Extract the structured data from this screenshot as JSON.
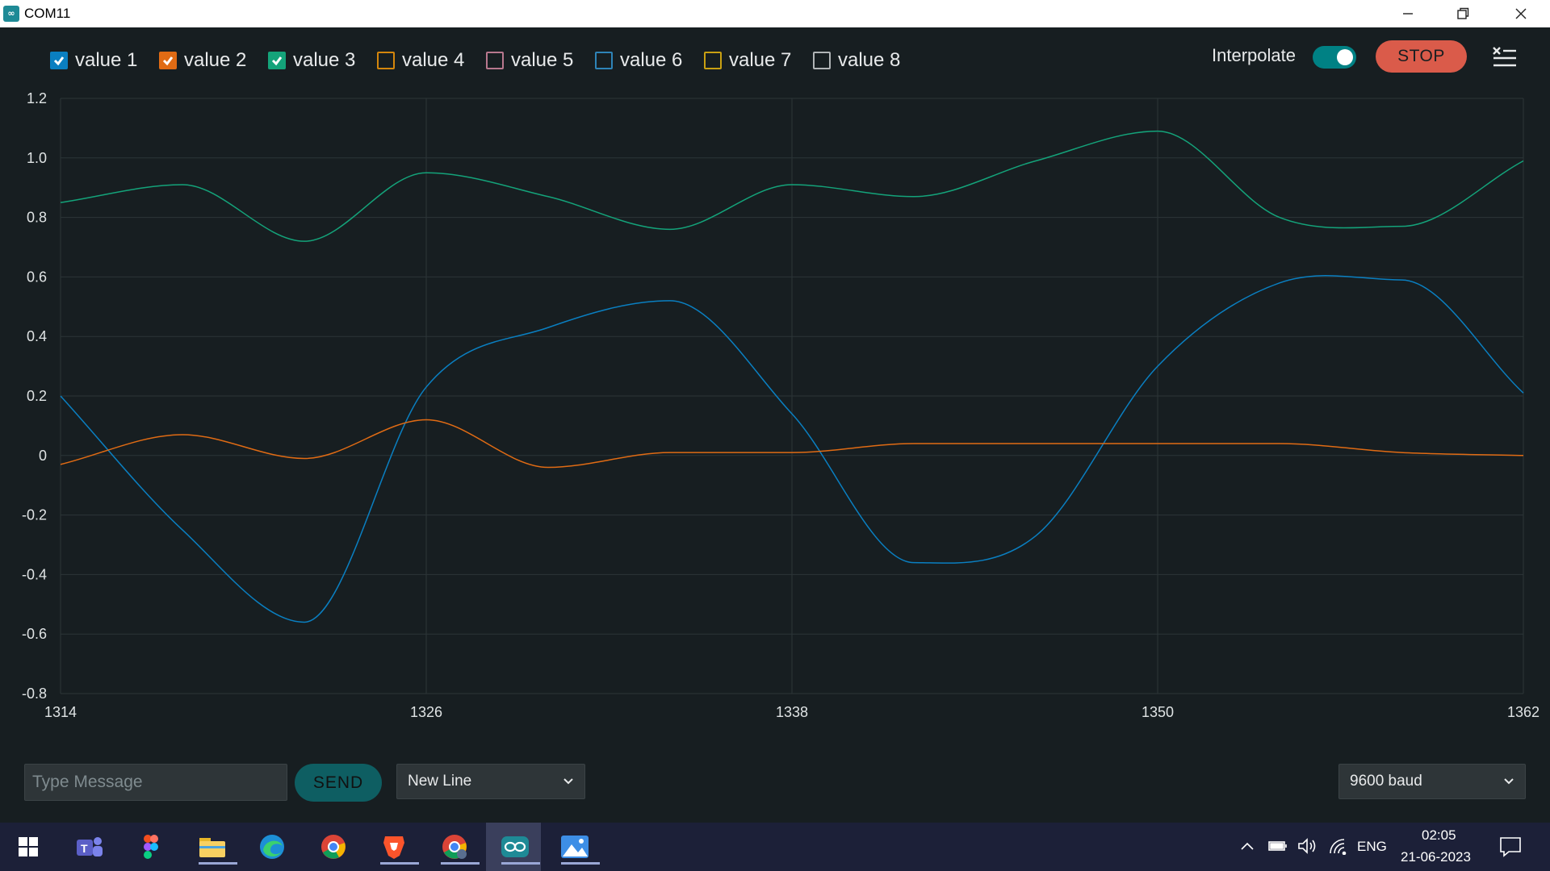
{
  "window": {
    "title": "COM11",
    "app_icon": "∞"
  },
  "legend": [
    {
      "label": "value 1",
      "color": "#0a7fc1",
      "checked": true
    },
    {
      "label": "value 2",
      "color": "#e06b14",
      "checked": true
    },
    {
      "label": "value 3",
      "color": "#14a37a",
      "checked": true
    },
    {
      "label": "value 4",
      "color": "#d4860c",
      "checked": false
    },
    {
      "label": "value 5",
      "color": "#b8788e",
      "checked": false
    },
    {
      "label": "value 6",
      "color": "#2e84b8",
      "checked": false
    },
    {
      "label": "value 7",
      "color": "#c9a012",
      "checked": false
    },
    {
      "label": "value 8",
      "color": "#b0b4b6",
      "checked": false
    }
  ],
  "controls": {
    "interpolate_label": "Interpolate",
    "interpolate_on": true,
    "stop_label": "STOP"
  },
  "chart_data": {
    "type": "line",
    "xlim": [
      1314,
      1362
    ],
    "ylim": [
      -0.8,
      1.2
    ],
    "x_ticks": [
      1314,
      1326,
      1338,
      1350,
      1362
    ],
    "y_ticks": [
      "1.2",
      "1.0",
      "0.8",
      "0.6",
      "0.4",
      "0.2",
      "0",
      "-0.2",
      "-0.4",
      "-0.6",
      "-0.8"
    ],
    "y_tick_values": [
      1.2,
      1.0,
      0.8,
      0.6,
      0.4,
      0.2,
      0,
      -0.2,
      -0.4,
      -0.6,
      -0.8
    ],
    "grid": true,
    "interpolated": true,
    "series": [
      {
        "name": "value 1",
        "color": "#0a7fc1",
        "x": [
          1314,
          1318,
          1322,
          1326,
          1330,
          1334,
          1338,
          1342,
          1346,
          1350,
          1354,
          1358,
          1362
        ],
        "y": [
          0.2,
          -0.25,
          -0.56,
          0.23,
          0.43,
          0.52,
          0.14,
          -0.36,
          -0.27,
          0.3,
          0.58,
          0.59,
          0.21
        ]
      },
      {
        "name": "value 2",
        "color": "#e06b14",
        "x": [
          1314,
          1318,
          1322,
          1326,
          1330,
          1334,
          1338,
          1342,
          1346,
          1350,
          1354,
          1358,
          1362
        ],
        "y": [
          -0.03,
          0.07,
          -0.01,
          0.12,
          -0.04,
          0.01,
          0.01,
          0.04,
          0.04,
          0.04,
          0.04,
          0.01,
          0.0
        ]
      },
      {
        "name": "value 3",
        "color": "#14a37a",
        "x": [
          1314,
          1318,
          1322,
          1326,
          1330,
          1334,
          1338,
          1342,
          1346,
          1350,
          1354,
          1358,
          1362
        ],
        "y": [
          0.85,
          0.91,
          0.72,
          0.95,
          0.87,
          0.76,
          0.91,
          0.87,
          0.99,
          1.09,
          0.8,
          0.77,
          0.99
        ]
      }
    ]
  },
  "input": {
    "placeholder": "Type Message",
    "send_label": "SEND"
  },
  "line_ending": {
    "selected": "New Line"
  },
  "baud": {
    "selected": "9600 baud"
  },
  "taskbar": {
    "apps": [
      "windows-start-icon",
      "teams-icon",
      "figma-icon",
      "file-explorer-icon",
      "edge-icon",
      "chrome-icon",
      "brave-icon",
      "chrome-dev-icon",
      "arduino-icon",
      "photos-icon"
    ],
    "language": "ENG",
    "time": "02:05",
    "date": "21-06-2023"
  }
}
